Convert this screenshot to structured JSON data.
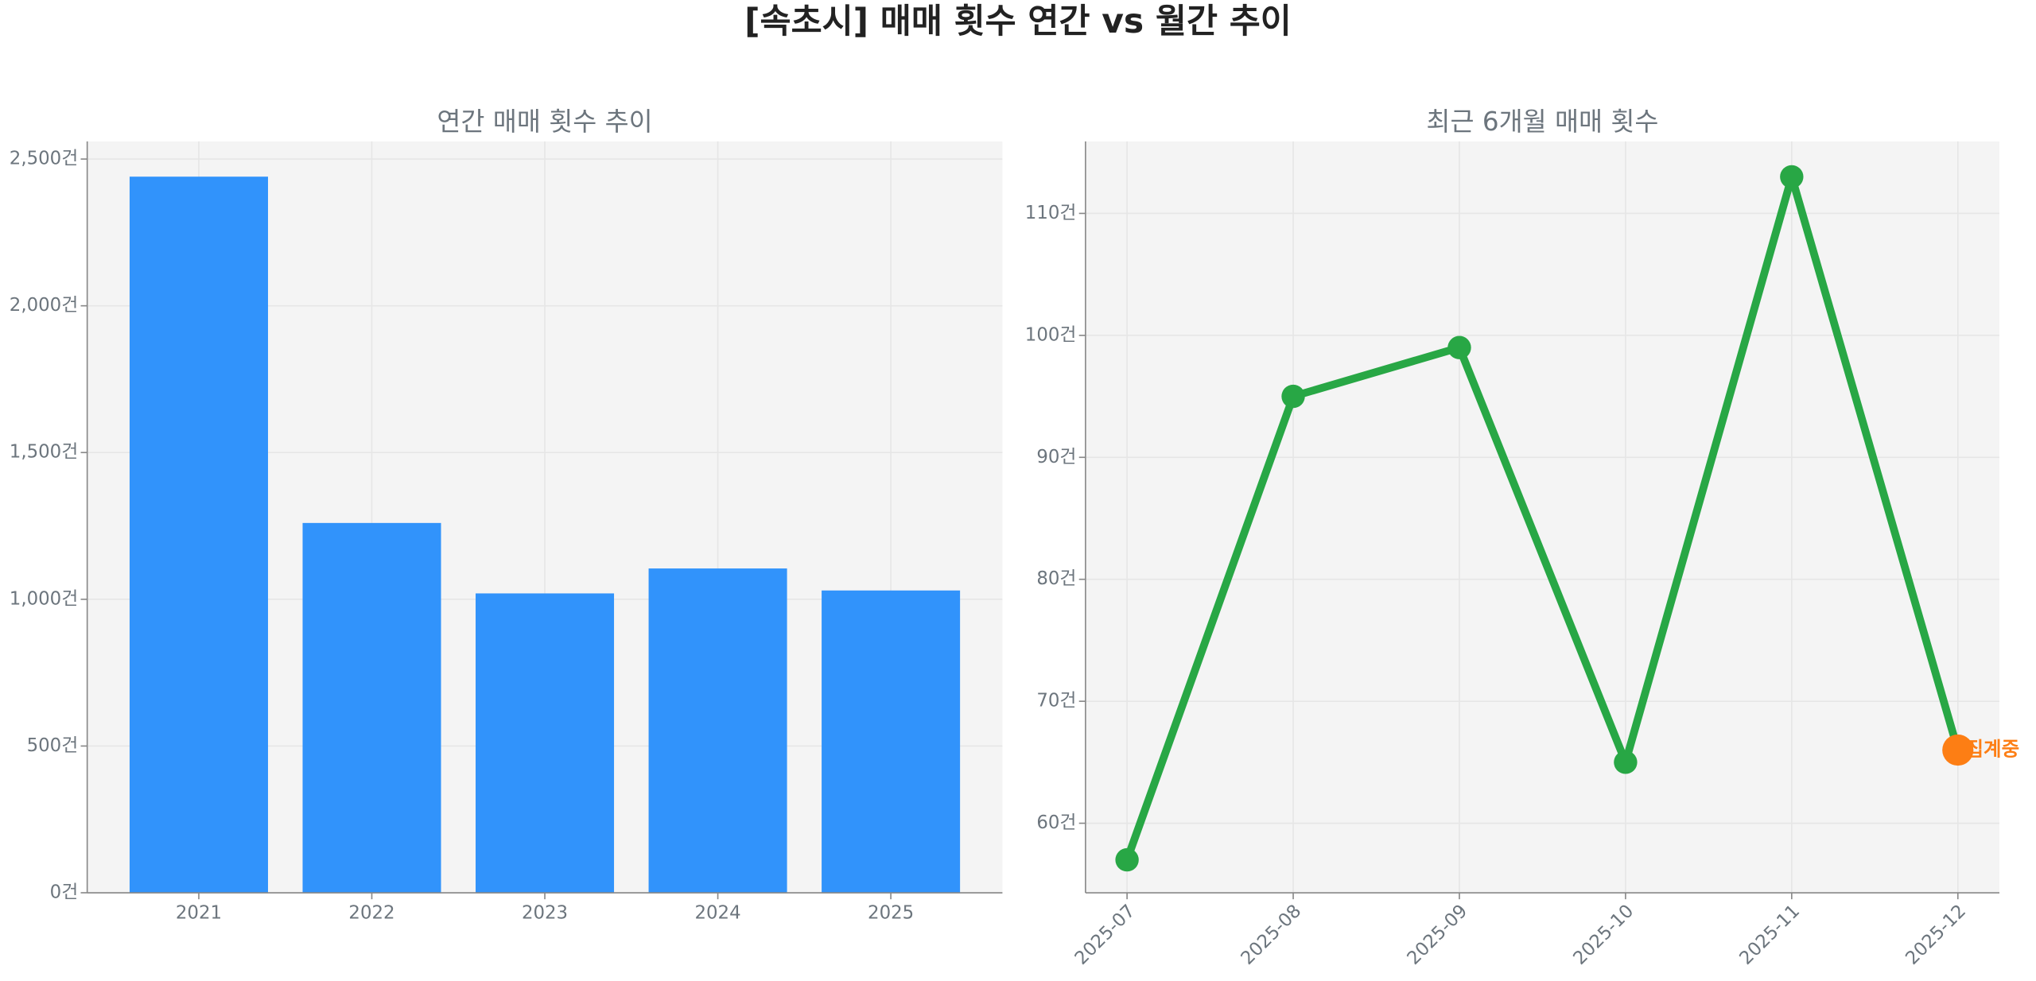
{
  "title": "[속초시] 매매 횟수 연간 vs 월간 추이",
  "chart_data": [
    {
      "type": "bar",
      "title": "연간 매매 횟수 추이",
      "categories": [
        "2021",
        "2022",
        "2023",
        "2024",
        "2025"
      ],
      "values": [
        2440,
        1260,
        1020,
        1105,
        1030
      ],
      "color": "#3193fb",
      "ylim": [
        0,
        2560
      ],
      "yticks": [
        {
          "value": 0,
          "label": "0건"
        },
        {
          "value": 500,
          "label": "500건"
        },
        {
          "value": 1000,
          "label": "1,000건"
        },
        {
          "value": 1500,
          "label": "1,500건"
        },
        {
          "value": 2000,
          "label": "2,000건"
        },
        {
          "value": 2500,
          "label": "2,500건"
        }
      ],
      "grid": true
    },
    {
      "type": "line",
      "title": "최근 6개월 매매 횟수",
      "categories": [
        "2025-07",
        "2025-08",
        "2025-09",
        "2025-10",
        "2025-11",
        "2025-12"
      ],
      "series": [
        {
          "color": "#28a745",
          "values": [
            57,
            95,
            99,
            65,
            113,
            66
          ]
        }
      ],
      "annotations": [
        {
          "text": "집계중",
          "x": "2025-12",
          "value": 66,
          "color": "#fd7e14"
        }
      ],
      "ylim": [
        54.3,
        115.9
      ],
      "yticks": [
        {
          "value": 60,
          "label": "60건"
        },
        {
          "value": 70,
          "label": "70건"
        },
        {
          "value": 80,
          "label": "80건"
        },
        {
          "value": 90,
          "label": "90건"
        },
        {
          "value": 100,
          "label": "100건"
        },
        {
          "value": 110,
          "label": "110건"
        }
      ],
      "grid": true
    }
  ]
}
